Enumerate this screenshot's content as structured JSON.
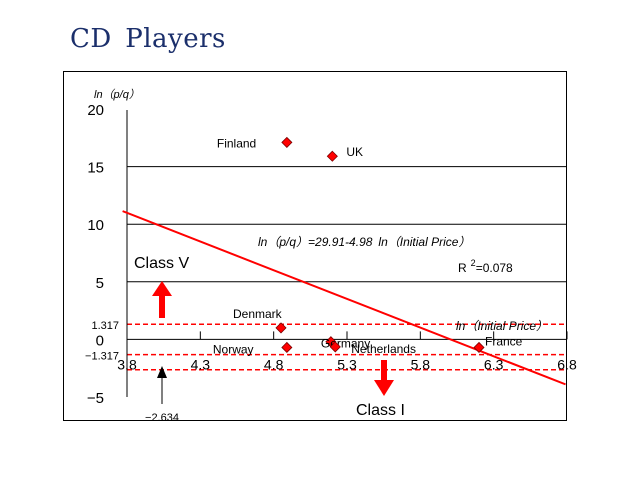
{
  "page": {
    "title": "CD Players"
  },
  "colors": {
    "regression": "#ff0000",
    "marker": "#ff0000",
    "threshold": "#ff0000",
    "arrow": "#ff0000",
    "axis": "#000000",
    "title": "#1b2f6b"
  },
  "chart_data": {
    "type": "scatter",
    "title": "",
    "ylabel": "ln（p/q）",
    "xlabel": "ln（Initial Price）",
    "xlim": [
      3.8,
      6.8
    ],
    "ylim": [
      -5,
      20
    ],
    "x_ticks": [
      "3.8",
      "4.3",
      "4.8",
      "5.3",
      "5.8",
      "6.3",
      "6.8"
    ],
    "y_ticks": [
      "20",
      "15",
      "10",
      "5",
      "0",
      "−5"
    ],
    "grid": "horizontal",
    "points": [
      {
        "label": "Finland",
        "x": 4.89,
        "y": 17.1
      },
      {
        "label": "UK",
        "x": 5.2,
        "y": 15.9
      },
      {
        "label": "Denmark",
        "x": 4.85,
        "y": 1.0
      },
      {
        "label": "Norway",
        "x": 4.89,
        "y": -0.7
      },
      {
        "label": "Germany",
        "x": 5.19,
        "y": -0.2
      },
      {
        "label": "Netherlands",
        "x": 5.22,
        "y": -0.65
      },
      {
        "label": "France",
        "x": 6.2,
        "y": -0.7
      }
    ],
    "regression": {
      "intercept": 29.91,
      "slope": -4.98,
      "equation": "ln（p/q）=29.91-4.98 ln（Initial Price）",
      "r2_label": "R",
      "r2_sup": "2",
      "r2_value": "=0.078"
    },
    "thresholds": [
      {
        "y": 1.317,
        "label": "1.317"
      },
      {
        "y": -1.317,
        "label": "−1.317"
      },
      {
        "y": -2.634,
        "label": "−2.634",
        "marker": "up-arrow"
      }
    ],
    "annotations": {
      "class_upper": "Class V",
      "class_lower": "Class I"
    }
  }
}
